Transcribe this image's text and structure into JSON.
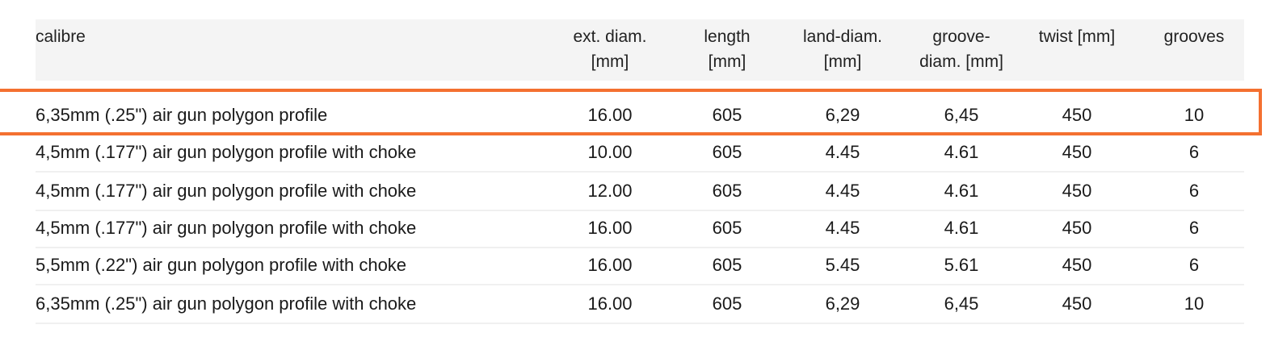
{
  "table": {
    "headers": [
      [
        "calibre"
      ],
      [
        "ext. diam.",
        "[mm]"
      ],
      [
        "length",
        "[mm]"
      ],
      [
        "land-diam.",
        "[mm]"
      ],
      [
        "groove-",
        "diam. [mm]"
      ],
      [
        "twist [mm]"
      ],
      [
        "grooves"
      ]
    ],
    "rows": [
      [
        "6,35mm (.25\") air gun polygon profile",
        "16.00",
        "605",
        "6,29",
        "6,45",
        "450",
        "10"
      ],
      [
        "4,5mm (.177\") air gun polygon profile with choke",
        "10.00",
        "605",
        "4.45",
        "4.61",
        "450",
        "6"
      ],
      [
        "4,5mm (.177\") air gun polygon profile with choke",
        "12.00",
        "605",
        "4.45",
        "4.61",
        "450",
        "6"
      ],
      [
        "4,5mm (.177\") air gun polygon profile with choke",
        "16.00",
        "605",
        "4.45",
        "4.61",
        "450",
        "6"
      ],
      [
        "5,5mm (.22\") air gun polygon profile with choke",
        "16.00",
        "605",
        "5.45",
        "5.61",
        "450",
        "6"
      ],
      [
        "6,35mm (.25\") air gun polygon profile with choke",
        "16.00",
        "605",
        "6,29",
        "6,45",
        "450",
        "10"
      ]
    ],
    "highlighted_row": 0,
    "highlight_color": "#f47030"
  }
}
